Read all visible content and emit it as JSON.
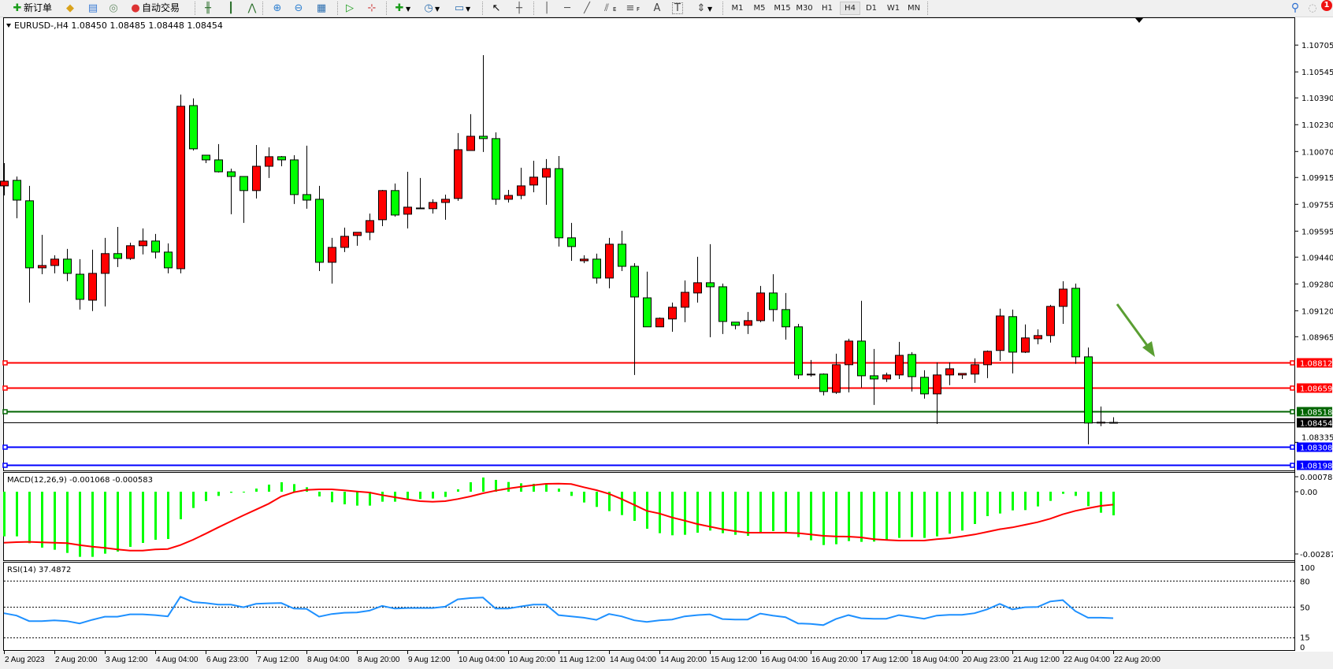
{
  "toolbar": {
    "new_order_label": "新订单",
    "auto_trading_label": "自动交易",
    "icons": [
      "new-order",
      "gold",
      "market-watch",
      "signals",
      "auto-trading",
      "bar-chart",
      "candlestick-chart",
      "line-chart",
      "zoom-in",
      "zoom-out",
      "tile-windows",
      "auto-scroll",
      "chart-shift",
      "indicators",
      "periods",
      "templates",
      "cursor",
      "crosshair",
      "vertical-line",
      "horizontal-line",
      "trendline",
      "fibonacci-E",
      "fibonacci-F",
      "text",
      "text-label",
      "arrows",
      "search",
      "notifications"
    ],
    "fibo_e_label": "E",
    "fibo_f_label": "F",
    "text_label": "A",
    "label_tool": "T",
    "timeframes": [
      "M1",
      "M5",
      "M15",
      "M30",
      "H1",
      "H4",
      "D1",
      "W1",
      "MN"
    ],
    "active_timeframe": "H4",
    "notification_count": "1"
  },
  "colors": {
    "bull": "#ff0000",
    "bear": "#00ff00",
    "macd_hist": "#00ff00",
    "macd_signal": "#ff0000",
    "rsi": "#1e90ff",
    "annotation_arrow": "#5a9e32"
  },
  "chart": {
    "title": "EURUSD-,H4  1.08450 1.08485 1.08448 1.08454",
    "macd_label": "MACD(12,26,9) -0.001068 -0.000583",
    "rsi_label": "RSI(14) 37.4872"
  },
  "chart_data": [
    {
      "type": "candlestick",
      "symbol": "EURUSD-",
      "timeframe": "H4",
      "ohlc_order": [
        "open",
        "high",
        "low",
        "close"
      ],
      "candles": [
        [
          1.09865,
          1.10001,
          1.09808,
          1.09893
        ],
        [
          1.09898,
          1.09921,
          1.09672,
          1.0978
        ],
        [
          1.09776,
          1.09865,
          1.09169,
          1.09376
        ],
        [
          1.09376,
          1.09573,
          1.09338,
          1.0939
        ],
        [
          1.0939,
          1.09451,
          1.09343,
          1.09428
        ],
        [
          1.09428,
          1.09489,
          1.09296,
          1.09343
        ],
        [
          1.09338,
          1.09428,
          1.09127,
          1.09188
        ],
        [
          1.09183,
          1.09484,
          1.09118,
          1.09343
        ],
        [
          1.09343,
          1.09555,
          1.09146,
          1.09461
        ],
        [
          1.09461,
          1.0962,
          1.09381,
          1.09432
        ],
        [
          1.09432,
          1.09526,
          1.09423,
          1.09508
        ],
        [
          1.09508,
          1.09611,
          1.09456,
          1.09536
        ],
        [
          1.09536,
          1.09578,
          1.09432,
          1.0947
        ],
        [
          1.0947,
          1.09522,
          1.09343,
          1.09376
        ],
        [
          1.09371,
          1.1041,
          1.09343,
          1.1034
        ],
        [
          1.10344,
          1.10387,
          1.10076,
          1.10086
        ],
        [
          1.10048,
          1.10048,
          1.10001,
          1.1002
        ],
        [
          1.1002,
          1.10114,
          1.09945,
          1.09949
        ],
        [
          1.09949,
          1.09968,
          1.09696,
          1.09921
        ],
        [
          1.09921,
          1.09921,
          1.09644,
          1.09837
        ],
        [
          1.09837,
          1.10109,
          1.0979,
          1.09982
        ],
        [
          1.09982,
          1.10095,
          1.09912,
          1.10039
        ],
        [
          1.10039,
          1.10043,
          1.09982,
          1.1002
        ],
        [
          1.1002,
          1.10048,
          1.09757,
          1.09813
        ],
        [
          1.09813,
          1.10105,
          1.09729,
          1.0978
        ],
        [
          1.09785,
          1.09865,
          1.09357,
          1.09409
        ],
        [
          1.09409,
          1.09555,
          1.09282,
          1.09498
        ],
        [
          1.09498,
          1.09616,
          1.0947,
          1.09564
        ],
        [
          1.09569,
          1.09588,
          1.09508,
          1.09588
        ],
        [
          1.09588,
          1.097,
          1.09541,
          1.09658
        ],
        [
          1.09663,
          1.09841,
          1.09625,
          1.09837
        ],
        [
          1.09837,
          1.09879,
          1.09682,
          1.09691
        ],
        [
          1.09696,
          1.09949,
          1.09611,
          1.09738
        ],
        [
          1.09729,
          1.09912,
          1.09729,
          1.09733
        ],
        [
          1.09729,
          1.09785,
          1.097,
          1.09766
        ],
        [
          1.09766,
          1.09813,
          1.09663,
          1.09785
        ],
        [
          1.0979,
          1.1018,
          1.09776,
          1.10081
        ],
        [
          1.10076,
          1.10293,
          1.10076,
          1.10161
        ],
        [
          1.10161,
          1.10645,
          1.10067,
          1.10147
        ],
        [
          1.10147,
          1.10184,
          1.09752,
          1.09785
        ],
        [
          1.09785,
          1.09841,
          1.09766,
          1.09808
        ],
        [
          1.09808,
          1.09973,
          1.09785,
          1.09865
        ],
        [
          1.0987,
          1.10015,
          1.09827,
          1.09917
        ],
        [
          1.09917,
          1.10025,
          1.09752,
          1.09968
        ],
        [
          1.09968,
          1.10043,
          1.09503,
          1.09555
        ],
        [
          1.09555,
          1.09644,
          1.09418,
          1.09503
        ],
        [
          1.09418,
          1.09451,
          1.09404,
          1.09428
        ],
        [
          1.09428,
          1.09461,
          1.09282,
          1.09315
        ],
        [
          1.09315,
          1.09555,
          1.09254,
          1.09517
        ],
        [
          1.09517,
          1.09597,
          1.09357,
          1.09385
        ],
        [
          1.09385,
          1.09404,
          1.08737,
          1.09202
        ],
        [
          1.09197,
          1.09353,
          1.09024,
          1.09024
        ],
        [
          1.09024,
          1.0908,
          1.09024,
          1.09075
        ],
        [
          1.09071,
          1.09169,
          1.08995,
          1.09141
        ],
        [
          1.09141,
          1.09301,
          1.09052,
          1.0923
        ],
        [
          1.09226,
          1.09442,
          1.09169,
          1.09287
        ],
        [
          1.09287,
          1.09517,
          1.08962,
          1.09263
        ],
        [
          1.09263,
          1.09282,
          1.08981,
          1.09056
        ],
        [
          1.09052,
          1.09052,
          1.09009,
          1.09033
        ],
        [
          1.09033,
          1.09113,
          1.08981,
          1.09061
        ],
        [
          1.09061,
          1.09268,
          1.09052,
          1.09226
        ],
        [
          1.09226,
          1.09338,
          1.09056,
          1.09127
        ],
        [
          1.09127,
          1.09226,
          1.08948,
          1.09024
        ],
        [
          1.09024,
          1.09042,
          1.08713,
          1.08737
        ],
        [
          1.08737,
          1.08826,
          1.08727,
          1.08742
        ],
        [
          1.08742,
          1.08746,
          1.08615,
          1.08638
        ],
        [
          1.08633,
          1.08864,
          1.08624,
          1.08798
        ],
        [
          1.08798,
          1.08953,
          1.08633,
          1.08939
        ],
        [
          1.08939,
          1.09179,
          1.08662,
          1.08732
        ],
        [
          1.08732,
          1.08892,
          1.08558,
          1.08713
        ],
        [
          1.08713,
          1.08751,
          1.08695,
          1.08737
        ],
        [
          1.08737,
          1.08934,
          1.08713,
          1.08854
        ],
        [
          1.08859,
          1.08873,
          1.08638,
          1.08727
        ],
        [
          1.08723,
          1.08765,
          1.08596,
          1.08624
        ],
        [
          1.08624,
          1.08812,
          1.08445,
          1.08737
        ],
        [
          1.08737,
          1.08812,
          1.08676,
          1.08774
        ],
        [
          1.08737,
          1.08746,
          1.08713,
          1.08746
        ],
        [
          1.08742,
          1.08836,
          1.0869,
          1.08798
        ],
        [
          1.08798,
          1.08883,
          1.08718,
          1.08878
        ],
        [
          1.08883,
          1.09132,
          1.08821,
          1.09089
        ],
        [
          1.09085,
          1.09127,
          1.08746,
          1.08873
        ],
        [
          1.08873,
          1.09038,
          1.08868,
          1.08958
        ],
        [
          1.08953,
          1.09009,
          1.0892,
          1.08972
        ],
        [
          1.08972,
          1.09155,
          1.0893,
          1.09146
        ],
        [
          1.09146,
          1.09296,
          1.09042,
          1.09249
        ],
        [
          1.09254,
          1.09282,
          1.08803,
          1.08845
        ],
        [
          1.08845,
          1.08901,
          1.08323,
          1.0845
        ],
        [
          1.0845,
          1.08549,
          1.08431,
          1.08455
        ],
        [
          1.0845,
          1.08485,
          1.08448,
          1.08454
        ]
      ],
      "x_labels": [
        "2 Aug 2023",
        "2 Aug 20:00",
        "3 Aug 12:00",
        "4 Aug 04:00",
        "6 Aug 23:00",
        "7 Aug 12:00",
        "8 Aug 04:00",
        "8 Aug 20:00",
        "9 Aug 12:00",
        "10 Aug 04:00",
        "10 Aug 20:00",
        "11 Aug 12:00",
        "14 Aug 04:00",
        "14 Aug 20:00",
        "15 Aug 12:00",
        "16 Aug 04:00",
        "16 Aug 20:00",
        "17 Aug 12:00",
        "18 Aug 04:00",
        "20 Aug 23:00",
        "21 Aug 12:00",
        "22 Aug 04:00",
        "22 Aug 20:00"
      ],
      "x_label_every_bars": 4,
      "y_ticks": [
        "1.10705",
        "1.10545",
        "1.10390",
        "1.10230",
        "1.10070",
        "1.09915",
        "1.09755",
        "1.09595",
        "1.09440",
        "1.09280",
        "1.09120",
        "1.08965",
        "1.08335"
      ],
      "horizontal_lines": [
        {
          "price": "1.08812",
          "color": "#ff0000"
        },
        {
          "price": "1.08659",
          "color": "#ff0000"
        },
        {
          "price": "1.08518",
          "color": "#006400"
        },
        {
          "price": "1.08308",
          "color": "#0000ff"
        },
        {
          "price": "1.08198",
          "color": "#0000ff"
        }
      ],
      "current_price": {
        "price": "1.08454",
        "color": "#000000"
      }
    },
    {
      "type": "bar+line",
      "indicator": "MACD(12,26,9)",
      "y_ticks": [
        "0.00078",
        "0.00",
        "-0.002871"
      ],
      "histogram": [
        -0.002018,
        -0.002018,
        -0.002327,
        -0.002528,
        -0.002623,
        -0.002766,
        -0.002944,
        -0.002944,
        -0.002801,
        -0.002706,
        -0.002493,
        -0.002315,
        -0.002172,
        -0.002137,
        -0.001246,
        -0.000736,
        -0.000427,
        -0.00019,
        -4.7e-05,
        -1.2e-05,
        0.000142,
        0.00032,
        0.000427,
        0.000344,
        0.000202,
        -0.000214,
        -0.000475,
        -0.00057,
        -0.000629,
        -0.000629,
        -0.000451,
        -0.000451,
        -0.000368,
        -0.000332,
        -0.000309,
        -0.000237,
        0.000107,
        0.000427,
        0.000641,
        0.000534,
        0.000439,
        0.00038,
        0.000356,
        0.00032,
        0.000142,
        -0.00019,
        -0.000487,
        -0.000688,
        -0.000878,
        -0.001056,
        -0.001318,
        -0.001674,
        -0.001875,
        -0.00197,
        -0.001947,
        -0.001852,
        -0.001757,
        -0.001875,
        -0.001947,
        -0.001994,
        -0.001875,
        -0.001781,
        -0.001816,
        -0.002054,
        -0.002196,
        -0.00241,
        -0.002374,
        -0.002232,
        -0.002267,
        -0.002255,
        -0.002172,
        -0.002089,
        -0.002054,
        -0.002089,
        -0.002018,
        -0.001899,
        -0.001757,
        -0.00146,
        -0.001104,
        -0.000985,
        -0.000843,
        -0.000831,
        -0.000665,
        -0.000415,
        -9.5e-05,
        -0.00019,
        -0.000653,
        -0.00095,
        -0.001068
      ],
      "signal": [
        -0.002303,
        -0.002279,
        -0.002267,
        -0.002291,
        -0.002303,
        -0.002327,
        -0.00241,
        -0.002481,
        -0.00254,
        -0.002611,
        -0.002659,
        -0.002659,
        -0.002611,
        -0.002588,
        -0.00241,
        -0.002172,
        -0.001899,
        -0.001614,
        -0.001341,
        -0.001068,
        -0.000807,
        -0.000546,
        -0.000214,
        -2.4e-05,
        8.3e-05,
        0.000107,
        0.000107,
        5.9e-05,
        1.2e-05,
        -3.6e-05,
        -0.000154,
        -0.000249,
        -0.000344,
        -0.000427,
        -0.000451,
        -0.000427,
        -0.000332,
        -0.000214,
        -7.1e-05,
        4.7e-05,
        0.000142,
        0.000226,
        0.000297,
        0.000356,
        0.000368,
        0.000344,
        0.000202,
        7.1e-05,
        -9.5e-05,
        -0.000332,
        -0.000594,
        -0.000867,
        -0.000985,
        -0.001163,
        -0.001306,
        -0.00146,
        -0.001579,
        -0.001697,
        -0.001781,
        -0.001852,
        -0.001852,
        -0.001852,
        -0.001852,
        -0.001875,
        -0.001935,
        -0.001994,
        -0.002018,
        -0.00203,
        -0.002065,
        -0.002148,
        -0.002184,
        -0.002208,
        -0.002208,
        -0.002208,
        -0.002148,
        -0.002101,
        -0.002018,
        -0.001935,
        -0.001816,
        -0.001697,
        -0.001614,
        -0.001496,
        -0.001377,
        -0.001223,
        -0.001021,
        -0.000867,
        -0.000748,
        -0.000641,
        -0.000583
      ]
    },
    {
      "type": "line",
      "indicator": "RSI(14)",
      "ylim": [
        0,
        100
      ],
      "y_ticks": [
        "100",
        "80",
        "50",
        "15",
        "0"
      ],
      "levels": [
        80,
        50,
        15
      ],
      "values": [
        43.1,
        40.4,
        34.1,
        34.1,
        35.0,
        34.1,
        31.4,
        35.6,
        39.2,
        39.2,
        41.9,
        41.9,
        41.0,
        39.5,
        62.0,
        56.0,
        54.8,
        53.0,
        53.0,
        50.0,
        53.9,
        54.5,
        54.8,
        48.5,
        48.2,
        39.2,
        42.2,
        43.7,
        44.0,
        46.1,
        51.5,
        48.5,
        49.1,
        49.1,
        49.1,
        50.6,
        59.0,
        60.5,
        61.1,
        48.5,
        48.5,
        50.9,
        53.0,
        53.0,
        41.0,
        39.5,
        38.0,
        35.6,
        42.2,
        39.5,
        35.0,
        33.2,
        35.0,
        35.9,
        39.5,
        41.0,
        41.9,
        36.5,
        35.9,
        35.9,
        42.8,
        40.4,
        38.6,
        31.4,
        31.0,
        29.5,
        36.5,
        41.0,
        37.4,
        36.8,
        36.8,
        41.0,
        38.9,
        36.8,
        40.4,
        41.3,
        41.3,
        43.1,
        47.6,
        53.9,
        47.6,
        50.0,
        50.3,
        56.6,
        58.1,
        45.5,
        38.0,
        38.0,
        37.4872
      ]
    }
  ]
}
